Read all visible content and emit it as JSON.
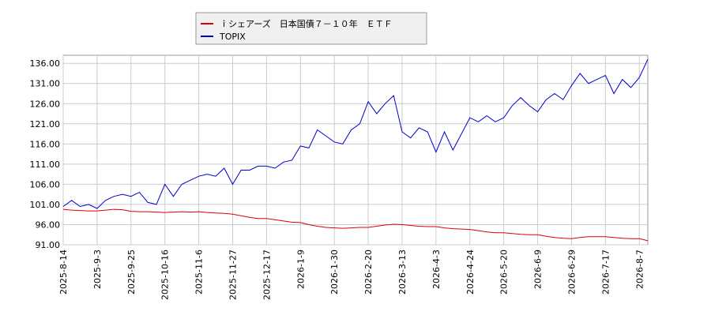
{
  "chart_data": {
    "type": "line",
    "legend": [
      "ｉシェアーズ　日本国債７－１０年　ＥＴＦ",
      "TOPIX"
    ],
    "categories": [
      "2025-8-14",
      null,
      null,
      null,
      "2025-9-3",
      null,
      null,
      null,
      "2025-9-25",
      null,
      null,
      null,
      "2025-10-16",
      null,
      null,
      null,
      "2025-11-6",
      null,
      null,
      null,
      "2025-11-27",
      null,
      null,
      null,
      "2025-12-17",
      null,
      null,
      null,
      "2026-1-9",
      null,
      null,
      null,
      "2026-1-30",
      null,
      null,
      null,
      "2026-2-20",
      null,
      null,
      null,
      "2026-3-13",
      null,
      null,
      null,
      "2026-4-3",
      null,
      null,
      null,
      "2026-4-24",
      null,
      null,
      null,
      "2026-5-20",
      null,
      null,
      null,
      "2026-6-9",
      null,
      null,
      null,
      "2026-6-29",
      null,
      null,
      null,
      "2026-7-17",
      null,
      null,
      null,
      "2026-8-7",
      null
    ],
    "series": [
      {
        "name": "ｉシェアーズ　日本国債７－１０年　ＥＴＦ",
        "color": "#dd0000",
        "values": [
          99.8,
          99.6,
          99.5,
          99.4,
          99.4,
          99.6,
          99.8,
          99.7,
          99.3,
          99.2,
          99.2,
          99.1,
          99.0,
          99.1,
          99.2,
          99.1,
          99.2,
          99.0,
          98.9,
          98.8,
          98.6,
          98.2,
          97.8,
          97.5,
          97.5,
          97.2,
          96.9,
          96.6,
          96.5,
          96.0,
          95.6,
          95.3,
          95.2,
          95.1,
          95.2,
          95.3,
          95.3,
          95.6,
          95.9,
          96.1,
          96.0,
          95.8,
          95.6,
          95.5,
          95.5,
          95.2,
          95.0,
          94.9,
          94.8,
          94.5,
          94.2,
          94.0,
          94.0,
          93.8,
          93.6,
          93.5,
          93.5,
          93.1,
          92.8,
          92.6,
          92.5,
          92.8,
          93.0,
          93.0,
          93.0,
          92.8,
          92.6,
          92.5,
          92.5,
          92.0
        ]
      },
      {
        "name": "TOPIX",
        "color": "#0000cc",
        "values": [
          100.5,
          102,
          100.5,
          101,
          100,
          102,
          103,
          103.5,
          103,
          104,
          101.5,
          101,
          106,
          103,
          106,
          107,
          108,
          108.5,
          108,
          110,
          106,
          109.5,
          109.5,
          110.5,
          110.5,
          110,
          111.5,
          112,
          115.5,
          115,
          119.5,
          118,
          116.5,
          116,
          119.5,
          121,
          126.5,
          123.5,
          126,
          128,
          119,
          117.5,
          120,
          119,
          114,
          119,
          114.5,
          118.5,
          122.5,
          121.5,
          123,
          121.5,
          122.5,
          125.5,
          127.5,
          125.5,
          124,
          127,
          128.5,
          127,
          130.5,
          133.5,
          131,
          132,
          133,
          128.5,
          132,
          130,
          132.5,
          137
        ]
      }
    ],
    "ylim": [
      91,
      138
    ],
    "yticks": [
      {
        "value": 91,
        "label": "91.00"
      },
      {
        "value": 96,
        "label": "96.00"
      },
      {
        "value": 101,
        "label": "101.00"
      },
      {
        "value": 106,
        "label": "106.00"
      },
      {
        "value": 111,
        "label": "111.00"
      },
      {
        "value": 116,
        "label": "116.00"
      },
      {
        "value": 121,
        "label": "121.00"
      },
      {
        "value": 126,
        "label": "126.00"
      },
      {
        "value": 131,
        "label": "131.00"
      },
      {
        "value": 136,
        "label": "136.00"
      }
    ],
    "grid": true
  }
}
